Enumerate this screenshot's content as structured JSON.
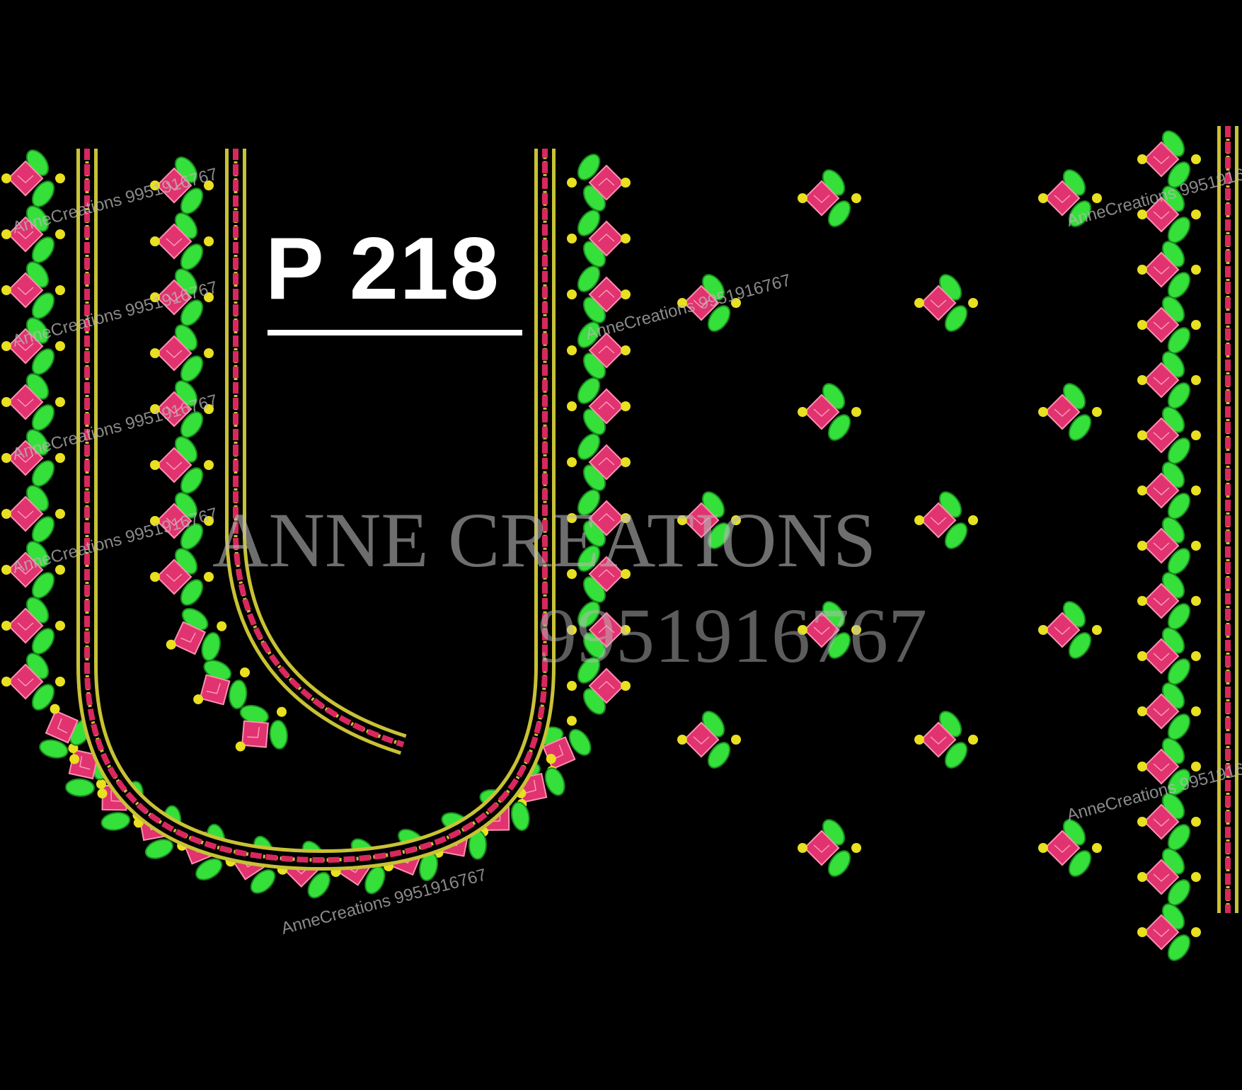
{
  "design": {
    "code": "P 218",
    "watermark_brand": "AnneCreations",
    "watermark_phone": "9951916767",
    "watermark_large": "ANNE CREATIONS",
    "watermark_large_number": "9951916767"
  },
  "colors": {
    "background": "#000000",
    "petal_pink": "#e0336f",
    "leaf_green": "#35e03a",
    "bead_yellow": "#e8e020",
    "border_gold": "#c8c236",
    "border_pink": "#d8285e",
    "title_text": "#ffffff",
    "watermark": "#b8b8b8"
  },
  "icons": {
    "motif": "flower-bud-icon",
    "bead": "dot-icon"
  }
}
